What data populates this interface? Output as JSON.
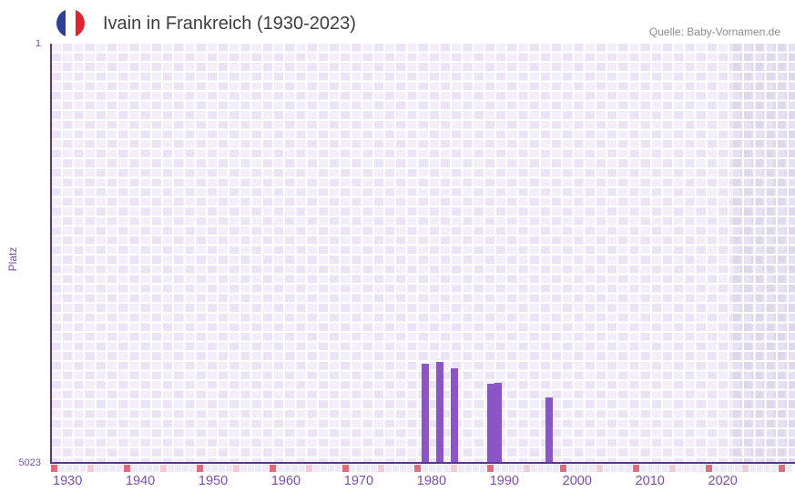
{
  "header": {
    "title": "Ivain in Frankreich (1930-2023)",
    "flag_icon": "france-flag",
    "source": "Quelle: Baby-Vornamen.de"
  },
  "chart_data": {
    "type": "bar",
    "title": "Ivain in Frankreich (1930-2023)",
    "xlabel": "",
    "ylabel": "Platz",
    "y_axis": {
      "min": 1,
      "max": 5023,
      "inverted": true,
      "tick_labels": [
        "1",
        "5023"
      ]
    },
    "x_axis": {
      "data_range": [
        1930,
        2023
      ],
      "drawn_range": [
        1930,
        2031
      ],
      "tick_labels": [
        "1930",
        "1940",
        "1950",
        "1960",
        "1970",
        "1980",
        "1990",
        "2000",
        "2010",
        "2020"
      ],
      "major_tick_every": 10,
      "minor_tick_every": 5
    },
    "series": [
      {
        "name": "Platz",
        "points": [
          {
            "year": 1981,
            "rank": 3836
          },
          {
            "year": 1983,
            "rank": 3814
          },
          {
            "year": 1985,
            "rank": 3887
          },
          {
            "year": 1990,
            "rank": 4072
          },
          {
            "year": 1991,
            "rank": 4061
          },
          {
            "year": 1998,
            "rank": 4235
          }
        ]
      }
    ],
    "legend": "none",
    "grid": "checkerboard",
    "annotations": {
      "future_region_start_year": 2023.5
    },
    "colors": {
      "bar": "#8a56c5",
      "axis_line": "#5b3397",
      "axis_text": "#7b4cb3",
      "major_tick": "#e16a7d",
      "minor_tick": "#f2cbd7",
      "plain_tick": "#efe9f8",
      "plot_bg_light": [
        "#f3eefa",
        "#ece4f6"
      ],
      "plot_bg_future": [
        "#e7e2f1",
        "#ded8ea"
      ],
      "title_text": "#3d3d3d",
      "source_text": "#8d8d8d",
      "flag_blue": "#2d3f99",
      "flag_white": "#ffffff",
      "flag_red": "#e0242e"
    }
  }
}
